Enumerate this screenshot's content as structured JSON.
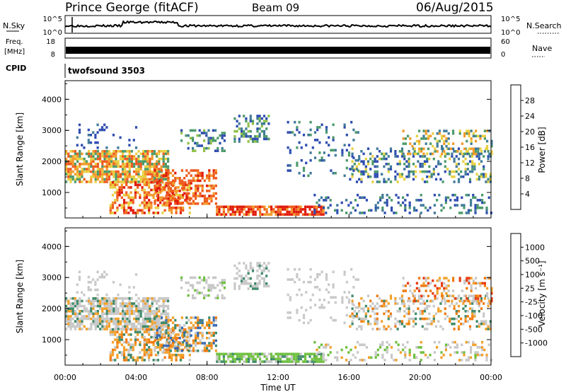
{
  "header": {
    "station": "Prince George (fitACF)",
    "beam": "Beam 09",
    "date": "06/Aug/2015"
  },
  "top_panels": {
    "nsky_label": "N.Sky",
    "nsky_ticks": [
      "10^5",
      "10^0"
    ],
    "nsearch_label": "N.Search",
    "nsearch_ticks": [
      "10^5",
      "10^0"
    ],
    "freq_label_1": "Freq.",
    "freq_label_2": "[MHz]",
    "freq_ticks": [
      "18",
      "8"
    ],
    "nave_label": "Nave",
    "nave_ticks": [
      "60",
      "0"
    ],
    "cpid_label": "CPID",
    "cpid_value": "twofsound 3503"
  },
  "chart_data": [
    {
      "type": "heatmap",
      "name": "power",
      "ylabel": "Slant Range [km]",
      "yticks": [
        "1000",
        "2000",
        "3000",
        "4000"
      ],
      "ylim": [
        180,
        4600
      ],
      "xlim_hours": [
        0,
        24
      ],
      "colorbar_label": "Power [dB]",
      "colorbar_ticks": [
        "4",
        "8",
        "12",
        "16",
        "20",
        "24",
        "28"
      ],
      "colors": [
        "#1a1aff",
        "#2e4cb0",
        "#3f7a98",
        "#4c9a6a",
        "#8fc04a",
        "#e8d040",
        "#f29a2a",
        "#ef5a1e",
        "#e01a0a"
      ]
    },
    {
      "type": "heatmap",
      "name": "velocity",
      "ylabel": "Slant Range [km]",
      "yticks": [
        "1000",
        "2000",
        "3000",
        "4000"
      ],
      "ylim": [
        180,
        4600
      ],
      "xlim_hours": [
        0,
        24
      ],
      "colorbar_label": "Velocity [m s⁻¹]",
      "colorbar_ticks": [
        "1000",
        "500",
        "100",
        "25",
        "-25",
        "-100",
        "-500",
        "-1000"
      ],
      "colors": [
        "#2a3ccc",
        "#3a6ab0",
        "#3f8a6a",
        "#6fc040",
        "#c8c8c8",
        "#c8c8c8",
        "#f2a02a",
        "#f07a10",
        "#e83a10",
        "#e01010"
      ]
    }
  ],
  "x_axis": {
    "ticks": [
      "00:00",
      "04:00",
      "08:00",
      "12:00",
      "16:00",
      "20:00",
      "00:00"
    ],
    "label": "Time UT"
  }
}
